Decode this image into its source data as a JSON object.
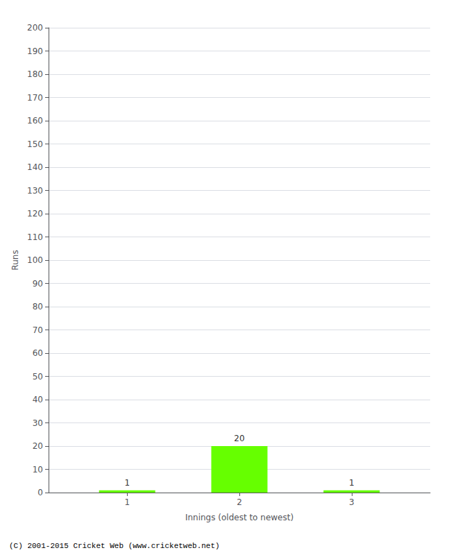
{
  "chart_data": {
    "type": "bar",
    "x": [
      1,
      2,
      3
    ],
    "values": [
      1,
      20,
      1
    ],
    "color": "#66ff00",
    "xlabel": "Innings (oldest to newest)",
    "ylabel": "Runs",
    "xlim": [
      0.3,
      3.7
    ],
    "xticks": [
      1,
      2,
      3
    ],
    "ylim": [
      0,
      200
    ],
    "yticks": [
      0,
      10,
      20,
      30,
      40,
      50,
      60,
      70,
      80,
      90,
      100,
      110,
      120,
      130,
      140,
      150,
      160,
      170,
      180,
      190,
      200
    ],
    "grid": true,
    "data_labels": true,
    "footer": "(C) 2001-2015 Cricket Web (www.cricketweb.net)"
  }
}
